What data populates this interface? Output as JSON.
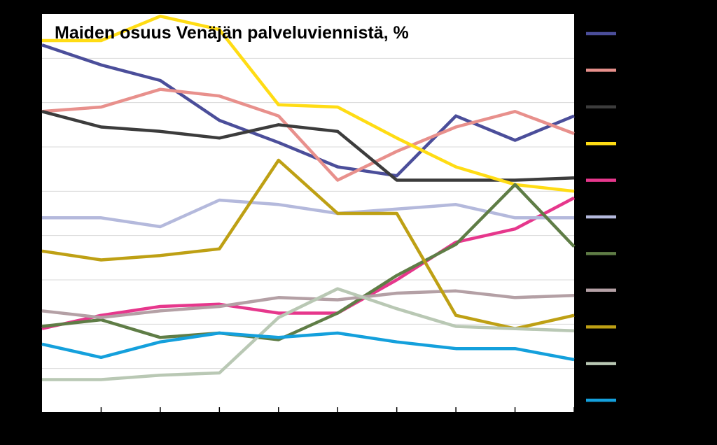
{
  "chart_data": {
    "type": "line",
    "title": "Maiden osuus Venäjän palveluviennistä, %",
    "xlabel": "",
    "ylabel": "",
    "ylim": [
      0,
      9
    ],
    "grid": true,
    "legend_position": "right",
    "background": "#000000",
    "plot_background": "#ffffff",
    "series": [
      {
        "color": "#4b4e9a",
        "values": [
          8.3,
          7.85,
          7.5,
          6.6,
          6.1,
          5.55,
          5.35,
          6.7,
          6.15,
          6.7
        ]
      },
      {
        "color": "#e8908c",
        "values": [
          6.8,
          6.9,
          7.3,
          7.15,
          6.7,
          5.25,
          5.9,
          6.45,
          6.8,
          6.3
        ]
      },
      {
        "color": "#3c3c3c",
        "values": [
          6.8,
          6.45,
          6.35,
          6.2,
          6.5,
          6.35,
          5.25,
          5.25,
          5.25,
          5.3
        ]
      },
      {
        "color": "#ffdc14",
        "values": [
          8.4,
          8.4,
          8.95,
          8.65,
          6.95,
          6.9,
          6.2,
          5.55,
          5.15,
          5.0
        ]
      },
      {
        "color": "#e6378c",
        "values": [
          1.9,
          2.2,
          2.4,
          2.45,
          2.25,
          2.25,
          3.0,
          3.85,
          4.15,
          4.85
        ]
      },
      {
        "color": "#b4b9dc",
        "values": [
          4.4,
          4.4,
          4.2,
          4.8,
          4.7,
          4.5,
          4.6,
          4.7,
          4.4,
          4.4
        ]
      },
      {
        "color": "#5f7d46",
        "values": [
          1.95,
          2.1,
          1.7,
          1.8,
          1.65,
          2.25,
          3.1,
          3.8,
          5.15,
          3.75
        ]
      },
      {
        "color": "#b4a0a5",
        "values": [
          2.3,
          2.15,
          2.3,
          2.4,
          2.6,
          2.55,
          2.7,
          2.75,
          2.6,
          2.65
        ]
      },
      {
        "color": "#bea014",
        "values": [
          3.65,
          3.45,
          3.55,
          3.7,
          5.7,
          4.5,
          4.5,
          2.2,
          1.9,
          2.2
        ]
      },
      {
        "color": "#b9c8b4",
        "values": [
          0.75,
          0.75,
          0.85,
          0.9,
          2.15,
          2.8,
          2.35,
          1.95,
          1.9,
          1.85
        ]
      },
      {
        "color": "#14a0dc",
        "values": [
          1.55,
          1.25,
          1.6,
          1.8,
          1.7,
          1.8,
          1.6,
          1.45,
          1.45,
          1.2
        ]
      }
    ]
  }
}
